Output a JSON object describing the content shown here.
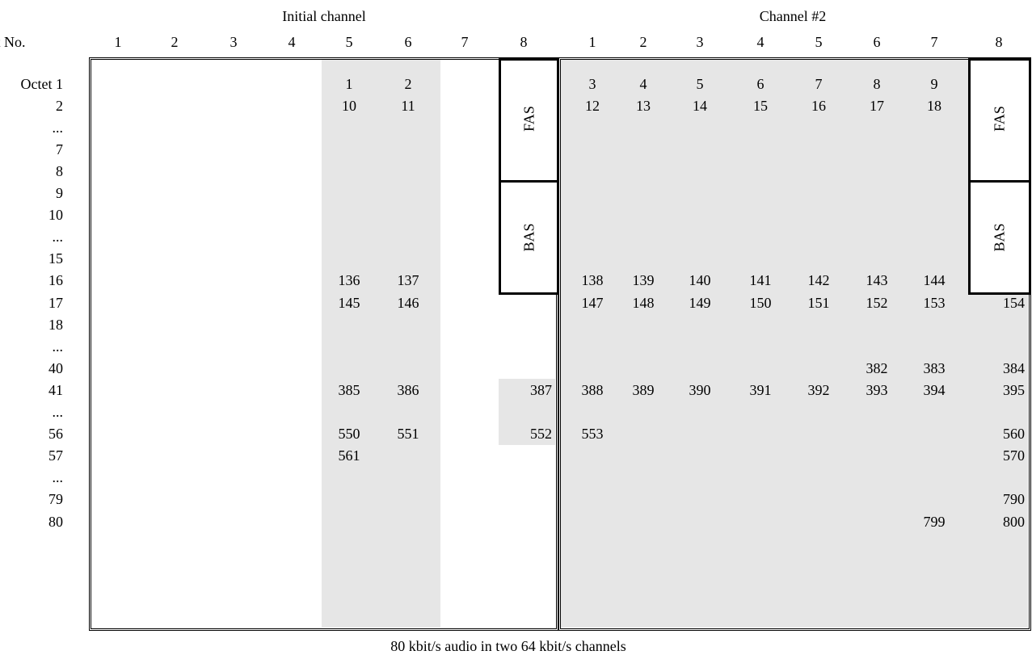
{
  "table": {
    "group_headers": {
      "initial": "Initial channel",
      "channel2": "Channel #2"
    },
    "bit_header": "Bit No.",
    "bit_numbers": [
      "1",
      "2",
      "3",
      "4",
      "5",
      "6",
      "7",
      "8"
    ],
    "octets": [
      "Octet 1",
      "2",
      "...",
      "7",
      "8",
      "9",
      "10",
      "...",
      "15",
      "16",
      "17",
      "18",
      "...",
      "40",
      "41",
      "...",
      "56",
      "57",
      "...",
      "79",
      "80"
    ],
    "fas_label": "FAS",
    "bas_label": "BAS",
    "rows": [
      {
        "i5": "1",
        "i6": "2",
        "i8": "",
        "c": [
          "3",
          "4",
          "5",
          "6",
          "7",
          "8",
          "9",
          ""
        ]
      },
      {
        "i5": "10",
        "i6": "11",
        "i8": "",
        "c": [
          "12",
          "13",
          "14",
          "15",
          "16",
          "17",
          "18",
          ""
        ]
      },
      {
        "i5": "",
        "i6": "",
        "i8": "",
        "c": [
          "",
          "",
          "",
          "",
          "",
          "",
          "",
          ""
        ]
      },
      {
        "i5": "",
        "i6": "",
        "i8": "",
        "c": [
          "",
          "",
          "",
          "",
          "",
          "",
          "",
          ""
        ]
      },
      {
        "i5": "",
        "i6": "",
        "i8": "",
        "c": [
          "",
          "",
          "",
          "",
          "",
          "",
          "",
          ""
        ]
      },
      {
        "i5": "",
        "i6": "",
        "i8": "",
        "c": [
          "",
          "",
          "",
          "",
          "",
          "",
          "",
          ""
        ]
      },
      {
        "i5": "",
        "i6": "",
        "i8": "",
        "c": [
          "",
          "",
          "",
          "",
          "",
          "",
          "",
          ""
        ]
      },
      {
        "i5": "",
        "i6": "",
        "i8": "",
        "c": [
          "",
          "",
          "",
          "",
          "",
          "",
          "",
          ""
        ]
      },
      {
        "i5": "",
        "i6": "",
        "i8": "",
        "c": [
          "",
          "",
          "",
          "",
          "",
          "",
          "",
          ""
        ]
      },
      {
        "i5": "136",
        "i6": "137",
        "i8": "",
        "c": [
          "138",
          "139",
          "140",
          "141",
          "142",
          "143",
          "144",
          ""
        ]
      },
      {
        "i5": "145",
        "i6": "146",
        "i8": "",
        "c": [
          "147",
          "148",
          "149",
          "150",
          "151",
          "152",
          "153",
          "154"
        ]
      },
      {
        "i5": "",
        "i6": "",
        "i8": "",
        "c": [
          "",
          "",
          "",
          "",
          "",
          "",
          "",
          ""
        ]
      },
      {
        "i5": "",
        "i6": "",
        "i8": "",
        "c": [
          "",
          "",
          "",
          "",
          "",
          "",
          "",
          ""
        ]
      },
      {
        "i5": "",
        "i6": "",
        "i8": "",
        "c": [
          "",
          "",
          "",
          "",
          "",
          "382",
          "383",
          "384"
        ]
      },
      {
        "i5": "385",
        "i6": "386",
        "i8": "387",
        "c": [
          "388",
          "389",
          "390",
          "391",
          "392",
          "393",
          "394",
          "395"
        ]
      },
      {
        "i5": "",
        "i6": "",
        "i8": "",
        "c": [
          "",
          "",
          "",
          "",
          "",
          "",
          "",
          ""
        ]
      },
      {
        "i5": "550",
        "i6": "551",
        "i8": "552",
        "c": [
          "553",
          "",
          "",
          "",
          "",
          "",
          "",
          "560"
        ]
      },
      {
        "i5": "561",
        "i6": "",
        "i8": "",
        "c": [
          "",
          "",
          "",
          "",
          "",
          "",
          "",
          "570"
        ]
      },
      {
        "i5": "",
        "i6": "",
        "i8": "",
        "c": [
          "",
          "",
          "",
          "",
          "",
          "",
          "",
          ""
        ]
      },
      {
        "i5": "",
        "i6": "",
        "i8": "",
        "c": [
          "",
          "",
          "",
          "",
          "",
          "",
          "",
          "790"
        ]
      },
      {
        "i5": "",
        "i6": "",
        "i8": "",
        "c": [
          "",
          "",
          "",
          "",
          "",
          "",
          "799",
          "800"
        ]
      }
    ],
    "caption": "80 kbit/s audio in two 64 kbit/s channels"
  }
}
